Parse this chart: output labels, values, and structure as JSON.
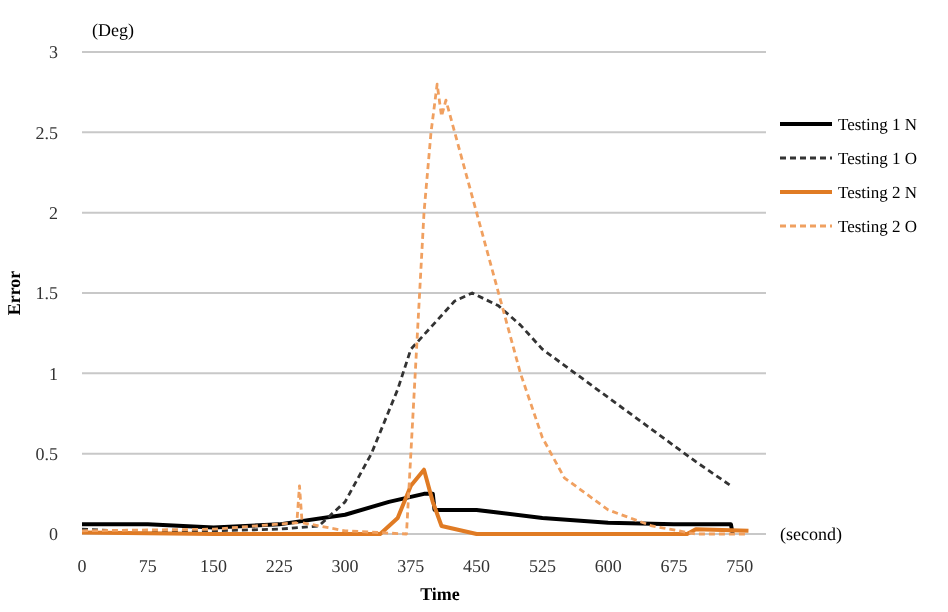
{
  "chart_data": {
    "type": "line",
    "xlabel": "Time",
    "ylabel": "Error",
    "annotations": [
      "(Deg)",
      "(second)"
    ],
    "xlim": [
      0,
      780
    ],
    "xticks": [
      0,
      75,
      150,
      225,
      300,
      375,
      450,
      525,
      600,
      675,
      750
    ],
    "ylim": [
      0,
      3
    ],
    "yticks": [
      0,
      0.5,
      1,
      1.5,
      2,
      2.5,
      3
    ],
    "grid": "y",
    "legend": "right",
    "marker": "none",
    "series": [
      {
        "name": "Testing 1 N",
        "color": "#000000",
        "line_style": "solid",
        "x": [
          0,
          75,
          150,
          225,
          300,
          350,
          390,
          400,
          402,
          450,
          525,
          600,
          675,
          740,
          742
        ],
        "values": [
          0.06,
          0.06,
          0.04,
          0.06,
          0.12,
          0.2,
          0.25,
          0.25,
          0.15,
          0.15,
          0.1,
          0.07,
          0.06,
          0.06,
          0.0
        ]
      },
      {
        "name": "Testing 1 O",
        "color": "#333333",
        "line_style": "dashed",
        "x": [
          0,
          75,
          150,
          225,
          270,
          300,
          330,
          360,
          375,
          400,
          425,
          445,
          475,
          500,
          525,
          575,
          600,
          650,
          700,
          740
        ],
        "values": [
          0.03,
          0.01,
          0.02,
          0.03,
          0.05,
          0.2,
          0.5,
          0.9,
          1.15,
          1.3,
          1.45,
          1.5,
          1.42,
          1.3,
          1.15,
          0.95,
          0.85,
          0.65,
          0.45,
          0.3
        ]
      },
      {
        "name": "Testing 2 N",
        "color": "#e07b24",
        "line_style": "solid",
        "x": [
          0,
          150,
          340,
          360,
          375,
          390,
          400,
          410,
          450,
          690,
          700,
          760
        ],
        "values": [
          0.01,
          0.0,
          0.0,
          0.1,
          0.3,
          0.4,
          0.2,
          0.05,
          0.0,
          0.0,
          0.03,
          0.02
        ]
      },
      {
        "name": "Testing 2 O",
        "color": "#f0a060",
        "line_style": "dashed",
        "x": [
          0,
          150,
          245,
          248,
          251,
          300,
          370,
          380,
          390,
          398,
          405,
          410,
          415,
          425,
          440,
          460,
          475,
          500,
          525,
          550,
          600,
          650,
          700,
          760
        ],
        "values": [
          0.02,
          0.03,
          0.07,
          0.3,
          0.07,
          0.02,
          0.0,
          1.0,
          2.0,
          2.5,
          2.8,
          2.6,
          2.7,
          2.5,
          2.2,
          1.8,
          1.5,
          1.0,
          0.6,
          0.35,
          0.15,
          0.05,
          0.0,
          0.0
        ]
      }
    ]
  }
}
